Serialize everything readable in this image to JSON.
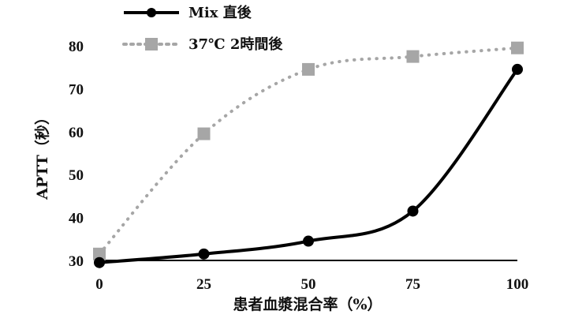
{
  "chart_data": {
    "type": "line",
    "x": [
      0,
      25,
      50,
      75,
      100
    ],
    "series": [
      {
        "name": "Mix 直後",
        "values": [
          29.5,
          31.5,
          34.5,
          41.5,
          74.5
        ],
        "color": "#000000",
        "style": "solid",
        "marker": "circle"
      },
      {
        "name": "37℃ 2時間後",
        "values": [
          31.5,
          59.5,
          74.5,
          77.5,
          79.5
        ],
        "color": "#a6a6a6",
        "style": "dotted",
        "marker": "square"
      }
    ],
    "xlabel": "患者血漿混合率（%）",
    "ylabel": "APTT（秒）",
    "xticks": [
      "0",
      "25",
      "50",
      "75",
      "100"
    ],
    "yticks": [
      "30",
      "40",
      "50",
      "60",
      "70",
      "80"
    ],
    "xlim": [
      0,
      100
    ],
    "ylim": [
      30,
      80
    ],
    "grid": false,
    "legend_position": "top-left"
  }
}
